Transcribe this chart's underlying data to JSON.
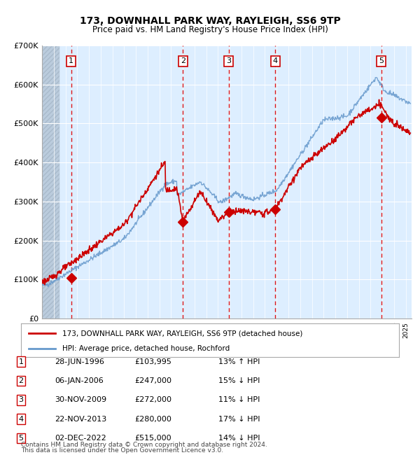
{
  "title": "173, DOWNHALL PARK WAY, RAYLEIGH, SS6 9TP",
  "subtitle": "Price paid vs. HM Land Registry's House Price Index (HPI)",
  "legend_line1": "173, DOWNHALL PARK WAY, RAYLEIGH, SS6 9TP (detached house)",
  "legend_line2": "HPI: Average price, detached house, Rochford",
  "footer1": "Contains HM Land Registry data © Crown copyright and database right 2024.",
  "footer2": "This data is licensed under the Open Government Licence v3.0.",
  "sales": [
    {
      "num": 1,
      "date": "28-JUN-1996",
      "price": 103995,
      "pct": "13%",
      "dir": "↑",
      "year_x": 1996.49
    },
    {
      "num": 2,
      "date": "06-JAN-2006",
      "price": 247000,
      "pct": "15%",
      "dir": "↓",
      "year_x": 2006.01
    },
    {
      "num": 3,
      "date": "30-NOV-2009",
      "price": 272000,
      "pct": "11%",
      "dir": "↓",
      "year_x": 2009.91
    },
    {
      "num": 4,
      "date": "22-NOV-2013",
      "price": 280000,
      "pct": "17%",
      "dir": "↓",
      "year_x": 2013.89
    },
    {
      "num": 5,
      "date": "02-DEC-2022",
      "price": 515000,
      "pct": "14%",
      "dir": "↓",
      "year_x": 2022.92
    }
  ],
  "ylim": [
    0,
    700000
  ],
  "xlim_start": 1994.0,
  "xlim_end": 2025.5,
  "hatch_end": 1995.5,
  "red_line_color": "#cc0000",
  "blue_line_color": "#6699cc",
  "background_color": "#ddeeff",
  "hatch_color": "#bbccdd",
  "grid_color": "#ffffff",
  "sale_marker_color": "#cc0000",
  "vline_color": "#dd0000",
  "box_color": "#cc0000",
  "table_border_color": "#cc0000"
}
